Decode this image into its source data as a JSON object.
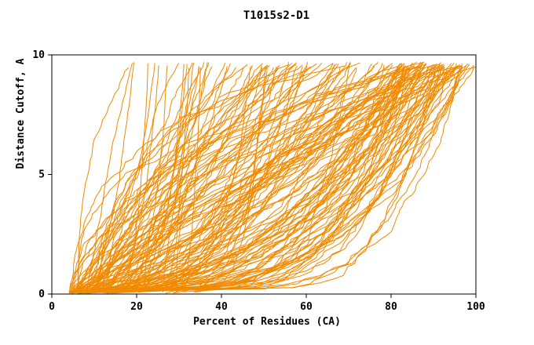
{
  "chart_data": {
    "type": "line",
    "title": "T1015s2-D1",
    "xlabel": "Percent of Residues (CA)",
    "ylabel": "Distance Cutoff, A",
    "xlim": [
      0,
      100
    ],
    "ylim": [
      0,
      10
    ],
    "xticks": [
      0,
      20,
      40,
      60,
      80,
      100
    ],
    "yticks": [
      0,
      5,
      10
    ],
    "grid": false,
    "legend": false,
    "frame_color": "#000000",
    "text_color": "#000000",
    "series_color": "#f08a00",
    "series_count": 160,
    "description": "Spaghetti plot of per-model cumulative accuracy curves for target T1015s2-D1: each orange curve shows the percent of CA residues (x) fitting under a given distance cutoff in Angstroms (y). About 160 monotonically increasing curves start near x=5-35 at y~0 and fan out to reach y~9.7 between x~15 and x=100, with the densest bundle sweeping through x=80-100 and a dense knot of nearly-flat segments along the bottom between x=10 and x=60.",
    "curve_generation": {
      "seed": 7,
      "count": 160,
      "y_start_range": [
        0.03,
        0.13
      ],
      "y_end_range": [
        9.45,
        9.7
      ],
      "x_start_range": [
        4,
        16
      ],
      "late_start_fraction": 0.1,
      "late_start_range": [
        15,
        34
      ],
      "x_end_buckets": [
        {
          "weight": 0.5,
          "range": [
            82,
            100
          ]
        },
        {
          "weight": 0.3,
          "range": [
            45,
            82
          ]
        },
        {
          "weight": 0.2,
          "range": [
            14,
            48
          ]
        }
      ],
      "shape_buckets": [
        {
          "weight": 0.45,
          "range": [
            0.18,
            0.5
          ]
        },
        {
          "weight": 0.35,
          "range": [
            0.5,
            1.2
          ]
        },
        {
          "weight": 0.2,
          "range": [
            1.2,
            2.8
          ]
        }
      ],
      "step_count": 56,
      "jitter": [
        0.25,
        1.75
      ]
    }
  }
}
